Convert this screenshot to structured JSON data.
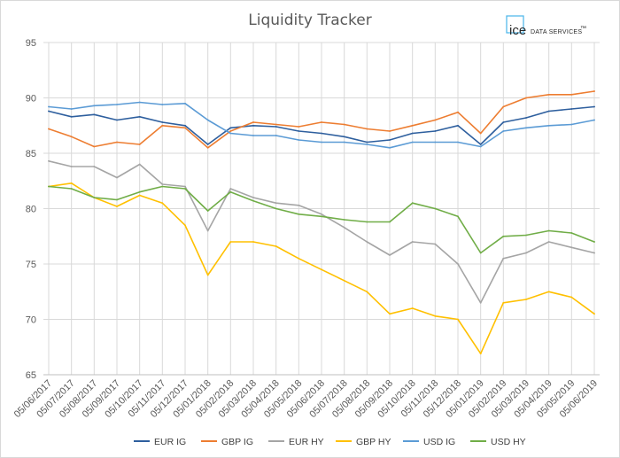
{
  "chart_data": {
    "type": "line",
    "title": "Liquidity Tracker",
    "ylim": [
      65,
      95
    ],
    "yticks": [
      65,
      70,
      75,
      80,
      85,
      90,
      95
    ],
    "x": [
      "05/06/2017",
      "05/07/2017",
      "05/08/2017",
      "05/09/2017",
      "05/10/2017",
      "05/11/2017",
      "05/12/2017",
      "05/01/2018",
      "05/02/2018",
      "05/03/2018",
      "05/04/2018",
      "05/05/2018",
      "05/06/2018",
      "05/07/2018",
      "05/08/2018",
      "05/09/2018",
      "05/10/2018",
      "05/11/2018",
      "05/12/2018",
      "05/01/2019",
      "05/02/2019",
      "05/03/2019",
      "05/04/2019",
      "05/05/2019",
      "05/06/2019"
    ],
    "grid": true,
    "legend_position": "bottom",
    "series": [
      {
        "name": "EUR IG",
        "color": "#2E5F9E",
        "values": [
          88.8,
          88.3,
          88.5,
          88.0,
          88.3,
          87.8,
          87.5,
          85.8,
          87.3,
          87.5,
          87.4,
          87.0,
          86.8,
          86.5,
          86.0,
          86.2,
          86.8,
          87.0,
          87.5,
          85.8,
          87.8,
          88.2,
          88.8,
          89.0,
          89.2
        ]
      },
      {
        "name": "GBP IG",
        "color": "#ED7D31",
        "values": [
          87.2,
          86.5,
          85.6,
          86.0,
          85.8,
          87.5,
          87.3,
          85.5,
          87.0,
          87.8,
          87.6,
          87.4,
          87.8,
          87.6,
          87.2,
          87.0,
          87.5,
          88.0,
          88.7,
          86.8,
          89.2,
          90.0,
          90.3,
          90.3,
          90.6
        ]
      },
      {
        "name": "EUR HY",
        "color": "#A5A5A5",
        "values": [
          84.3,
          83.8,
          83.8,
          82.8,
          84.0,
          82.2,
          82.0,
          78.0,
          81.8,
          81.0,
          80.5,
          80.3,
          79.5,
          78.3,
          77.0,
          75.8,
          77.0,
          76.8,
          75.0,
          71.5,
          75.5,
          76.0,
          77.0,
          76.5,
          76.0
        ]
      },
      {
        "name": "GBP HY",
        "color": "#FFC000",
        "values": [
          82.0,
          82.3,
          81.0,
          80.2,
          81.2,
          80.5,
          78.5,
          74.0,
          77.0,
          77.0,
          76.6,
          75.5,
          74.5,
          73.5,
          72.5,
          70.5,
          71.0,
          70.3,
          70.0,
          66.9,
          71.5,
          71.8,
          72.5,
          72.0,
          70.5
        ]
      },
      {
        "name": "USD IG",
        "color": "#5B9BD5",
        "values": [
          89.2,
          89.0,
          89.3,
          89.4,
          89.6,
          89.4,
          89.5,
          88.0,
          86.8,
          86.6,
          86.6,
          86.2,
          86.0,
          86.0,
          85.8,
          85.5,
          86.0,
          86.0,
          86.0,
          85.6,
          87.0,
          87.3,
          87.5,
          87.6,
          88.0
        ]
      },
      {
        "name": "USD HY",
        "color": "#70AD47",
        "values": [
          82.0,
          81.8,
          81.0,
          80.8,
          81.5,
          82.0,
          81.8,
          79.8,
          81.5,
          80.7,
          80.0,
          79.5,
          79.3,
          79.0,
          78.8,
          78.8,
          80.5,
          80.0,
          79.3,
          76.0,
          77.5,
          77.6,
          78.0,
          77.8,
          77.0
        ]
      }
    ]
  },
  "logo": {
    "primary": "ice",
    "secondary": "DATA SERVICES",
    "mark": "™"
  }
}
